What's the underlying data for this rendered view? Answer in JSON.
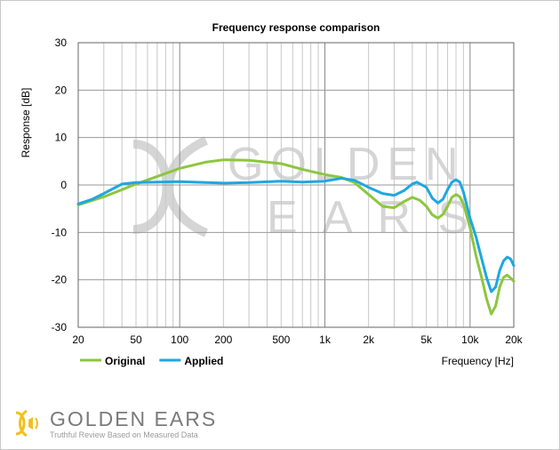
{
  "chart_data": {
    "type": "line",
    "title": "Frequency response comparison",
    "xlabel": "Frequency [Hz]",
    "ylabel": "Response [dB]",
    "x_scale": "log",
    "xlim": [
      20,
      20000
    ],
    "ylim": [
      -30,
      30
    ],
    "x_ticks": [
      {
        "value": 20,
        "label": "20"
      },
      {
        "value": 50,
        "label": "50"
      },
      {
        "value": 100,
        "label": "100"
      },
      {
        "value": 200,
        "label": "200"
      },
      {
        "value": 500,
        "label": "500"
      },
      {
        "value": 1000,
        "label": "1k"
      },
      {
        "value": 2000,
        "label": "2k"
      },
      {
        "value": 5000,
        "label": "5k"
      },
      {
        "value": 10000,
        "label": "10k"
      },
      {
        "value": 20000,
        "label": "20k"
      }
    ],
    "y_ticks": [
      30,
      20,
      10,
      0,
      -10,
      -20,
      -30
    ],
    "grid": true,
    "legend_position": "bottom-left",
    "series": [
      {
        "name": "Original",
        "color": "#8dc63f",
        "points": [
          [
            20,
            -4.2
          ],
          [
            30,
            -2.5
          ],
          [
            40,
            -1.0
          ],
          [
            50,
            0.2
          ],
          [
            70,
            1.8
          ],
          [
            100,
            3.5
          ],
          [
            150,
            4.8
          ],
          [
            200,
            5.3
          ],
          [
            300,
            5.2
          ],
          [
            500,
            4.5
          ],
          [
            700,
            3.3
          ],
          [
            1000,
            2.2
          ],
          [
            1300,
            1.6
          ],
          [
            1600,
            0.5
          ],
          [
            2000,
            -2.0
          ],
          [
            2500,
            -4.5
          ],
          [
            3000,
            -4.8
          ],
          [
            3500,
            -3.5
          ],
          [
            4000,
            -2.6
          ],
          [
            4500,
            -3.2
          ],
          [
            5000,
            -4.5
          ],
          [
            5500,
            -6.3
          ],
          [
            6000,
            -7.0
          ],
          [
            6500,
            -6.2
          ],
          [
            7000,
            -4.5
          ],
          [
            7500,
            -2.6
          ],
          [
            8000,
            -2.0
          ],
          [
            8500,
            -2.5
          ],
          [
            9000,
            -4.0
          ],
          [
            10000,
            -9.0
          ],
          [
            11000,
            -15.0
          ],
          [
            12000,
            -19.5
          ],
          [
            13000,
            -24.0
          ],
          [
            14000,
            -27.2
          ],
          [
            15000,
            -25.5
          ],
          [
            16000,
            -21.5
          ],
          [
            17000,
            -19.5
          ],
          [
            18000,
            -19.0
          ],
          [
            19000,
            -19.6
          ],
          [
            20000,
            -20.3
          ]
        ]
      },
      {
        "name": "Applied",
        "color": "#1ea7e1",
        "points": [
          [
            20,
            -4.0
          ],
          [
            25,
            -3.0
          ],
          [
            30,
            -1.8
          ],
          [
            40,
            0.2
          ],
          [
            50,
            0.5
          ],
          [
            70,
            0.6
          ],
          [
            100,
            0.7
          ],
          [
            200,
            0.4
          ],
          [
            300,
            0.5
          ],
          [
            500,
            0.8
          ],
          [
            700,
            0.6
          ],
          [
            1000,
            0.8
          ],
          [
            1300,
            1.4
          ],
          [
            1600,
            1.0
          ],
          [
            2000,
            -0.5
          ],
          [
            2500,
            -1.8
          ],
          [
            3000,
            -2.2
          ],
          [
            3500,
            -1.2
          ],
          [
            4000,
            0.2
          ],
          [
            4300,
            0.6
          ],
          [
            5000,
            -0.5
          ],
          [
            5500,
            -2.8
          ],
          [
            6000,
            -3.8
          ],
          [
            6500,
            -3.0
          ],
          [
            7000,
            -1.0
          ],
          [
            7500,
            0.6
          ],
          [
            8000,
            1.1
          ],
          [
            8500,
            0.6
          ],
          [
            9000,
            -1.5
          ],
          [
            10000,
            -7.0
          ],
          [
            11000,
            -11.0
          ],
          [
            12000,
            -15.5
          ],
          [
            13000,
            -19.5
          ],
          [
            14000,
            -22.5
          ],
          [
            15000,
            -21.5
          ],
          [
            16000,
            -18.0
          ],
          [
            17000,
            -16.0
          ],
          [
            18000,
            -15.2
          ],
          [
            19000,
            -15.6
          ],
          [
            20000,
            -17.0
          ]
        ]
      }
    ]
  },
  "watermark": {
    "line1": "GOLDEN",
    "line2": "E A R S",
    "color": "#d5d5d5"
  },
  "brand": {
    "name": "GOLDEN EARS",
    "tagline": "Truthful Review Based on Measured Data",
    "logo_color": "#f0c020"
  }
}
